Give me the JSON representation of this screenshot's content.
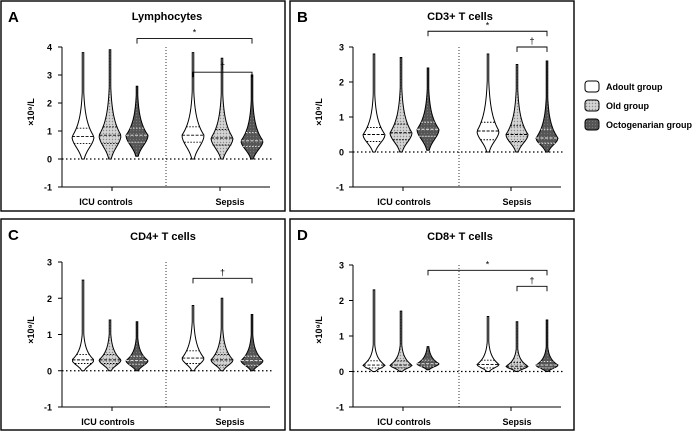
{
  "panels": [
    {
      "letter": "A",
      "title": "Lymphocytes",
      "ylabel": "×10⁹/L",
      "yticks": [
        "-1",
        "0",
        "1",
        "2",
        "3",
        "4"
      ],
      "categories": [
        "ICU controls",
        "Sepsis"
      ],
      "annotations": [
        "*",
        "†"
      ]
    },
    {
      "letter": "B",
      "title": "CD3+ T cells",
      "ylabel": "×10⁹/L",
      "yticks": [
        "-1",
        "0",
        "1",
        "2",
        "3"
      ],
      "categories": [
        "ICU controls",
        "Sepsis"
      ],
      "annotations": [
        "*",
        "†"
      ]
    },
    {
      "letter": "C",
      "title": "CD4+ T cells",
      "ylabel": "×10⁹/L",
      "yticks": [
        "-1",
        "0",
        "1",
        "2",
        "3"
      ],
      "categories": [
        "ICU controls",
        "Sepsis"
      ],
      "annotations": [
        "†"
      ]
    },
    {
      "letter": "D",
      "title": "CD8+ T cells",
      "ylabel": "×10⁹/L",
      "yticks": [
        "-1",
        "0",
        "1",
        "2",
        "3"
      ],
      "categories": [
        "ICU controls",
        "Sepsis"
      ],
      "annotations": [
        "*",
        "†"
      ]
    }
  ],
  "legend": [
    {
      "label": "Adoult group",
      "color": "#ffffff",
      "pattern": "none"
    },
    {
      "label": "Old group",
      "color": "#c8c8c8",
      "pattern": "dots"
    },
    {
      "label": "Octogenarian group",
      "color": "#5a5a5a",
      "pattern": "dark"
    }
  ],
  "chart_data": [
    {
      "type": "violin",
      "title": "Lymphocytes",
      "ylabel": "×10⁹/L",
      "ylim": [
        -1,
        4
      ],
      "categories": [
        "ICU controls",
        "Sepsis"
      ],
      "series": [
        {
          "name": "Adoult group",
          "values": [
            {
              "min": 0.0,
              "q1": 0.55,
              "median": 0.8,
              "q3": 1.1,
              "max": 3.8
            },
            {
              "min": 0.0,
              "q1": 0.6,
              "median": 0.85,
              "q3": 1.15,
              "max": 3.8
            }
          ]
        },
        {
          "name": "Old group",
          "values": [
            {
              "min": 0.0,
              "q1": 0.55,
              "median": 0.85,
              "q3": 1.15,
              "max": 3.9
            },
            {
              "min": 0.0,
              "q1": 0.5,
              "median": 0.75,
              "q3": 1.05,
              "max": 3.6
            }
          ]
        },
        {
          "name": "Octogenarian group",
          "values": [
            {
              "min": 0.1,
              "q1": 0.6,
              "median": 0.85,
              "q3": 1.1,
              "max": 2.6
            },
            {
              "min": 0.0,
              "q1": 0.45,
              "median": 0.65,
              "q3": 0.95,
              "max": 3.0
            }
          ]
        }
      ],
      "significance": [
        {
          "label": "*",
          "y": 4.3,
          "from": "ICU controls/Octogenarian group",
          "to": "Sepsis/Octogenarian group"
        },
        {
          "label": "†",
          "y": 3.1,
          "from": "Sepsis/Adoult group",
          "to": "Sepsis/Octogenarian group"
        }
      ]
    },
    {
      "type": "violin",
      "title": "CD3+ T cells",
      "ylabel": "×10⁹/L",
      "ylim": [
        -1,
        3
      ],
      "categories": [
        "ICU controls",
        "Sepsis"
      ],
      "series": [
        {
          "name": "Adoult group",
          "values": [
            {
              "min": 0.0,
              "q1": 0.3,
              "median": 0.5,
              "q3": 0.7,
              "max": 2.8
            },
            {
              "min": 0.0,
              "q1": 0.35,
              "median": 0.6,
              "q3": 0.85,
              "max": 2.8
            }
          ]
        },
        {
          "name": "Old group",
          "values": [
            {
              "min": 0.0,
              "q1": 0.35,
              "median": 0.55,
              "q3": 0.8,
              "max": 2.7
            },
            {
              "min": 0.0,
              "q1": 0.3,
              "median": 0.5,
              "q3": 0.75,
              "max": 2.5
            }
          ]
        },
        {
          "name": "Octogenarian group",
          "values": [
            {
              "min": 0.05,
              "q1": 0.45,
              "median": 0.65,
              "q3": 0.85,
              "max": 2.4
            },
            {
              "min": 0.0,
              "q1": 0.25,
              "median": 0.4,
              "q3": 0.65,
              "max": 2.6
            }
          ]
        }
      ],
      "significance": [
        {
          "label": "*",
          "y": 3.45,
          "from": "ICU controls/Octogenarian group",
          "to": "Sepsis/Octogenarian group"
        },
        {
          "label": "†",
          "y": 3.0,
          "from": "Sepsis/Old group",
          "to": "Sepsis/Octogenarian group"
        }
      ]
    },
    {
      "type": "violin",
      "title": "CD4+ T cells",
      "ylabel": "×10⁹/L",
      "ylim": [
        -1,
        3
      ],
      "categories": [
        "ICU controls",
        "Sepsis"
      ],
      "series": [
        {
          "name": "Adoult group",
          "values": [
            {
              "min": 0.0,
              "q1": 0.2,
              "median": 0.3,
              "q3": 0.45,
              "max": 2.5
            },
            {
              "min": 0.0,
              "q1": 0.2,
              "median": 0.35,
              "q3": 0.55,
              "max": 1.8
            }
          ]
        },
        {
          "name": "Old group",
          "values": [
            {
              "min": 0.0,
              "q1": 0.2,
              "median": 0.3,
              "q3": 0.45,
              "max": 1.4
            },
            {
              "min": 0.0,
              "q1": 0.15,
              "median": 0.3,
              "q3": 0.45,
              "max": 2.0
            }
          ]
        },
        {
          "name": "Octogenarian group",
          "values": [
            {
              "min": 0.0,
              "q1": 0.18,
              "median": 0.28,
              "q3": 0.4,
              "max": 1.35
            },
            {
              "min": 0.0,
              "q1": 0.15,
              "median": 0.28,
              "q3": 0.4,
              "max": 1.55
            }
          ]
        }
      ],
      "significance": [
        {
          "label": "†",
          "y": 2.55,
          "from": "Sepsis/Adoult group",
          "to": "Sepsis/Octogenarian group"
        }
      ]
    },
    {
      "type": "violin",
      "title": "CD8+ T cells",
      "ylabel": "×10⁹/L",
      "ylim": [
        -1,
        3
      ],
      "categories": [
        "ICU controls",
        "Sepsis"
      ],
      "series": [
        {
          "name": "Adoult group",
          "values": [
            {
              "min": 0.0,
              "q1": 0.1,
              "median": 0.18,
              "q3": 0.3,
              "max": 2.3
            },
            {
              "min": 0.0,
              "q1": 0.1,
              "median": 0.2,
              "q3": 0.32,
              "max": 1.55
            }
          ]
        },
        {
          "name": "Old group",
          "values": [
            {
              "min": 0.0,
              "q1": 0.1,
              "median": 0.18,
              "q3": 0.3,
              "max": 1.7
            },
            {
              "min": 0.0,
              "q1": 0.08,
              "median": 0.15,
              "q3": 0.25,
              "max": 1.4
            }
          ]
        },
        {
          "name": "Octogenarian group",
          "values": [
            {
              "min": 0.05,
              "q1": 0.15,
              "median": 0.22,
              "q3": 0.32,
              "max": 0.7
            },
            {
              "min": 0.0,
              "q1": 0.1,
              "median": 0.18,
              "q3": 0.28,
              "max": 1.45
            }
          ]
        }
      ],
      "significance": [
        {
          "label": "*",
          "y": 2.85,
          "from": "ICU controls/Octogenarian group",
          "to": "Sepsis/Octogenarian group"
        },
        {
          "label": "†",
          "y": 2.4,
          "from": "Sepsis/Old group",
          "to": "Sepsis/Octogenarian group"
        }
      ]
    }
  ]
}
